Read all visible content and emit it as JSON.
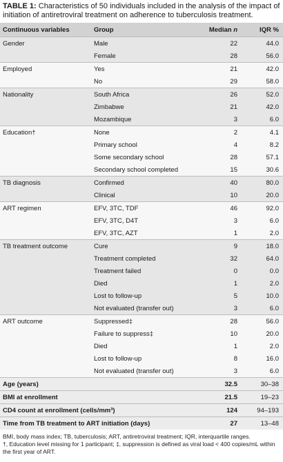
{
  "caption": {
    "label": "TABLE 1:",
    "text": "Characteristics of 50 individuals included in the analysis of the impact of initiation of antiretroviral treatment on adherence to tuberculosis treatment."
  },
  "table": {
    "headers": {
      "variable": "Continuous variables",
      "group": "Group",
      "median": "Median n",
      "iqr": "IQR %"
    },
    "groups": [
      {
        "variable": "Gender",
        "rows": [
          {
            "group": "Male",
            "median": "22",
            "iqr": "44.0"
          },
          {
            "group": "Female",
            "median": "28",
            "iqr": "56.0"
          }
        ]
      },
      {
        "variable": "Employed",
        "rows": [
          {
            "group": "Yes",
            "median": "21",
            "iqr": "42.0"
          },
          {
            "group": "No",
            "median": "29",
            "iqr": "58.0"
          }
        ]
      },
      {
        "variable": "Nationality",
        "rows": [
          {
            "group": "South Africa",
            "median": "26",
            "iqr": "52.0"
          },
          {
            "group": "Zimbabwe",
            "median": "21",
            "iqr": "42.0"
          },
          {
            "group": "Mozambique",
            "median": "3",
            "iqr": "6.0"
          }
        ]
      },
      {
        "variable": "Education†",
        "rows": [
          {
            "group": "None",
            "median": "2",
            "iqr": "4.1"
          },
          {
            "group": "Primary school",
            "median": "4",
            "iqr": "8.2"
          },
          {
            "group": "Some secondary school",
            "median": "28",
            "iqr": "57.1"
          },
          {
            "group": "Secondary school completed",
            "median": "15",
            "iqr": "30.6"
          }
        ]
      },
      {
        "variable": "TB diagnosis",
        "rows": [
          {
            "group": "Confirmed",
            "median": "40",
            "iqr": "80.0"
          },
          {
            "group": "Clinical",
            "median": "10",
            "iqr": "20.0"
          }
        ]
      },
      {
        "variable": "ART regimen",
        "rows": [
          {
            "group": "EFV, 3TC, TDF",
            "median": "46",
            "iqr": "92.0"
          },
          {
            "group": "EFV, 3TC, D4T",
            "median": "3",
            "iqr": "6.0"
          },
          {
            "group": "EFV, 3TC, AZT",
            "median": "1",
            "iqr": "2.0"
          }
        ]
      },
      {
        "variable": "TB treatment outcome",
        "rows": [
          {
            "group": "Cure",
            "median": "9",
            "iqr": "18.0"
          },
          {
            "group": "Treatment completed",
            "median": "32",
            "iqr": "64.0"
          },
          {
            "group": "Treatment failed",
            "median": "0",
            "iqr": "0.0"
          },
          {
            "group": "Died",
            "median": "1",
            "iqr": "2.0"
          },
          {
            "group": "Lost to follow-up",
            "median": "5",
            "iqr": "10.0"
          },
          {
            "group": "Not evaluated (transfer out)",
            "median": "3",
            "iqr": "6.0"
          }
        ]
      },
      {
        "variable": "ART outcome",
        "rows": [
          {
            "group": "Suppressed‡",
            "median": "28",
            "iqr": "56.0"
          },
          {
            "group": "Failure to suppress‡",
            "median": "10",
            "iqr": "20.0"
          },
          {
            "group": "Died",
            "median": "1",
            "iqr": "2.0"
          },
          {
            "group": "Lost to follow-up",
            "median": "8",
            "iqr": "16.0"
          },
          {
            "group": "Not evaluated (transfer out)",
            "median": "3",
            "iqr": "6.0"
          }
        ]
      }
    ],
    "summary": [
      {
        "label": "Age (years)",
        "median": "32.5",
        "iqr": "30–38"
      },
      {
        "label": "BMI at enrollment",
        "median": "21.5",
        "iqr": "19–23"
      },
      {
        "label": "CD4 count at enrollment (cells/mm³)",
        "median": "124",
        "iqr": "94–193"
      },
      {
        "label": "Time from TB treatment to ART initiation (days)",
        "median": "27",
        "iqr": "13–48"
      }
    ]
  },
  "footnotes": {
    "abbreviations": "BMI, body mass index; TB, tuberculosis; ART, antiretroviral treatment; IQR, interquartile ranges.",
    "notes": "†, Education level missing for 1 participant; ‡, suppression is defined as viral load < 400 copies/mL within the first year of ART."
  }
}
